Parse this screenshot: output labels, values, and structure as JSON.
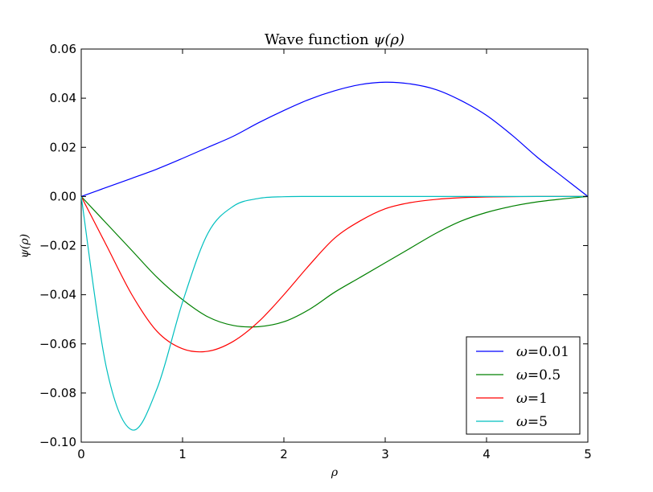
{
  "chart_data": {
    "type": "line",
    "title": "Wave function ψ(ρ)",
    "title_prefix": "Wave function ",
    "title_math": "ψ(ρ)",
    "xlabel": "ρ",
    "ylabel": "ψ(ρ)",
    "xlim": [
      0,
      5
    ],
    "ylim": [
      -0.1,
      0.06
    ],
    "xticks": [
      0,
      1,
      2,
      3,
      4,
      5
    ],
    "xtick_labels": [
      "0",
      "1",
      "2",
      "3",
      "4",
      "5"
    ],
    "yticks": [
      -0.1,
      -0.08,
      -0.06,
      -0.04,
      -0.02,
      0.0,
      0.02,
      0.04,
      0.06
    ],
    "ytick_labels": [
      "−0.10",
      "−0.08",
      "−0.06",
      "−0.04",
      "−0.02",
      "0.00",
      "0.02",
      "0.04",
      "0.06"
    ],
    "grid": false,
    "legend_position": "lower-right",
    "x": [
      0,
      0.25,
      0.5,
      0.75,
      1.0,
      1.25,
      1.5,
      1.75,
      2.0,
      2.25,
      2.5,
      2.75,
      3.0,
      3.25,
      3.5,
      3.75,
      4.0,
      4.25,
      4.5,
      4.75,
      5.0
    ],
    "series": [
      {
        "name": "ω=0.01",
        "color": "#0000ff",
        "values": [
          0.0,
          0.0037,
          0.0074,
          0.0112,
          0.0155,
          0.02,
          0.0245,
          0.03,
          0.035,
          0.0395,
          0.043,
          0.0455,
          0.0465,
          0.0458,
          0.0435,
          0.039,
          0.033,
          0.025,
          0.016,
          0.008,
          0.0
        ]
      },
      {
        "name": "ω=0.5",
        "color": "#008000",
        "values": [
          0.0,
          -0.011,
          -0.022,
          -0.033,
          -0.042,
          -0.049,
          -0.0525,
          -0.053,
          -0.051,
          -0.046,
          -0.039,
          -0.033,
          -0.027,
          -0.021,
          -0.015,
          -0.01,
          -0.0065,
          -0.004,
          -0.0022,
          -0.001,
          0.0
        ]
      },
      {
        "name": "ω=1",
        "color": "#ff0000",
        "values": [
          0.0,
          -0.02,
          -0.04,
          -0.055,
          -0.062,
          -0.063,
          -0.059,
          -0.051,
          -0.04,
          -0.028,
          -0.017,
          -0.01,
          -0.005,
          -0.0025,
          -0.0012,
          -0.0005,
          -0.0002,
          -0.0001,
          0.0,
          0.0,
          0.0
        ]
      },
      {
        "name": "ω=5",
        "color": "#00bfbf",
        "values": [
          0.0,
          -0.07,
          -0.095,
          -0.078,
          -0.043,
          -0.015,
          -0.004,
          -0.0008,
          -0.0001,
          0.0,
          0.0,
          0.0,
          0.0,
          0.0,
          0.0,
          0.0,
          0.0,
          0.0,
          0.0,
          0.0,
          0.0
        ]
      }
    ]
  }
}
